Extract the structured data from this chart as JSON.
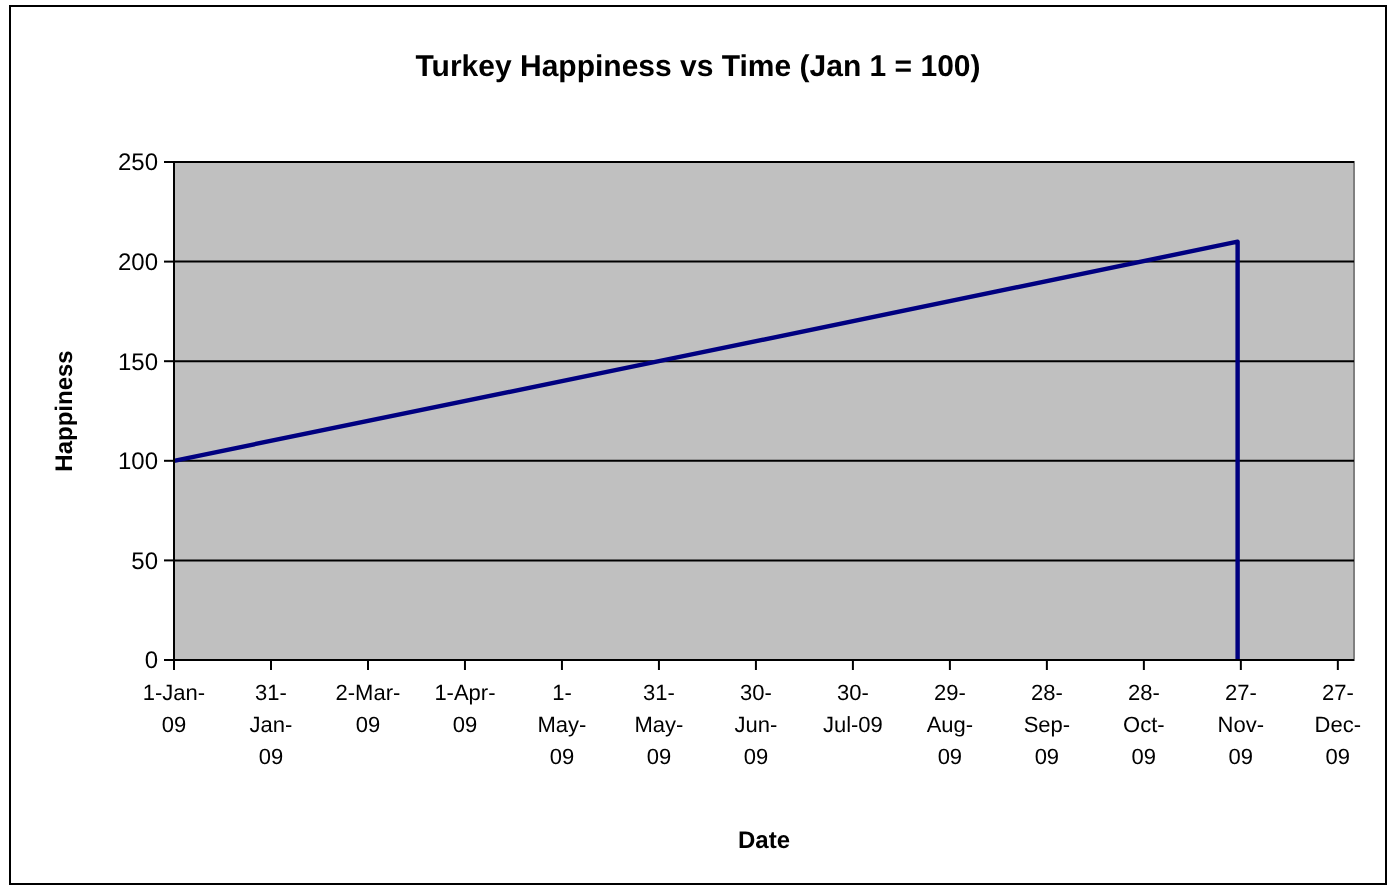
{
  "chart_data": {
    "type": "line",
    "title": "Turkey Happiness vs Time (Jan 1 = 100)",
    "xlabel": "Date",
    "ylabel": "Happiness",
    "series": [
      {
        "color": "#000080",
        "x": [
          "2009-01-01",
          "2009-05-31",
          "2009-11-26",
          "2009-11-26"
        ],
        "values": [
          100,
          150,
          210,
          0
        ]
      }
    ],
    "xlim": [
      "2009-01-01",
      "2010-01-01"
    ],
    "xticks": [
      {
        "value": "2009-01-01",
        "label": "1-Jan-09"
      },
      {
        "value": "2009-01-31",
        "label": "31-Jan-09"
      },
      {
        "value": "2009-03-02",
        "label": "2-Mar-09"
      },
      {
        "value": "2009-04-01",
        "label": "1-Apr-09"
      },
      {
        "value": "2009-05-01",
        "label": "1-May-09"
      },
      {
        "value": "2009-05-31",
        "label": "31-May-09"
      },
      {
        "value": "2009-06-30",
        "label": "30-Jun-09"
      },
      {
        "value": "2009-07-30",
        "label": "30-Jul-09"
      },
      {
        "value": "2009-08-29",
        "label": "29-Aug-09"
      },
      {
        "value": "2009-09-28",
        "label": "28-Sep-09"
      },
      {
        "value": "2009-10-28",
        "label": "28-Oct-09"
      },
      {
        "value": "2009-11-27",
        "label": "27-Nov-09"
      },
      {
        "value": "2009-12-27",
        "label": "27-Dec-09"
      }
    ],
    "ylim": [
      0,
      250
    ],
    "yticks": [
      0,
      50,
      100,
      150,
      200,
      250
    ],
    "grid": "y",
    "marker": "none",
    "line_style": "solid"
  }
}
